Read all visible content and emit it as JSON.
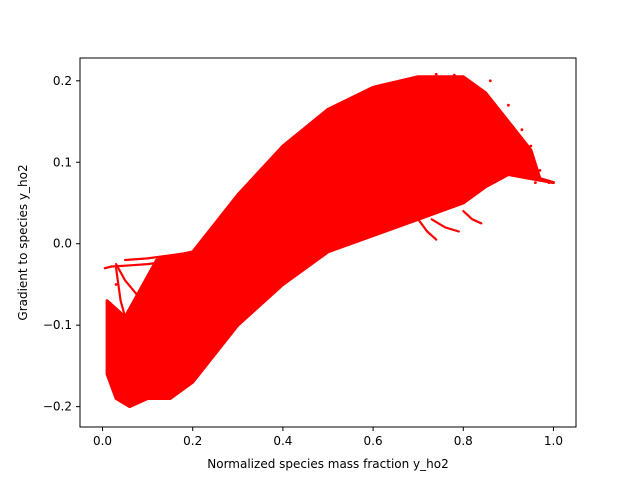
{
  "chart_data": {
    "type": "scatter",
    "title": "",
    "xlabel": "Normalized species mass fraction y_ho2",
    "ylabel": "Gradient to species y_ho2",
    "xlim": [
      -0.05,
      1.05
    ],
    "ylim": [
      -0.225,
      0.228
    ],
    "xticks": [
      0.0,
      0.2,
      0.4,
      0.6,
      0.8,
      1.0
    ],
    "xtick_labels": [
      "0.0",
      "0.2",
      "0.4",
      "0.6",
      "0.8",
      "1.0"
    ],
    "yticks": [
      -0.2,
      -0.1,
      0.0,
      0.1,
      0.2
    ],
    "ytick_labels": [
      "−0.2",
      "−0.1",
      "0.0",
      "0.1",
      "0.2"
    ],
    "grid": false,
    "legend": "none",
    "marker_color": "#ff0000",
    "series": [
      {
        "name": "",
        "upper_envelope": [
          [
            0.01,
            -0.07
          ],
          [
            0.05,
            -0.09
          ],
          [
            0.1,
            -0.04
          ],
          [
            0.12,
            -0.02
          ],
          [
            0.2,
            -0.01
          ],
          [
            0.3,
            0.06
          ],
          [
            0.4,
            0.12
          ],
          [
            0.5,
            0.165
          ],
          [
            0.6,
            0.192
          ],
          [
            0.7,
            0.205
          ],
          [
            0.8,
            0.205
          ],
          [
            0.85,
            0.185
          ],
          [
            0.9,
            0.15
          ],
          [
            0.95,
            0.115
          ],
          [
            0.97,
            0.08
          ],
          [
            1.0,
            0.075
          ]
        ],
        "lower_envelope": [
          [
            1.0,
            0.075
          ],
          [
            0.95,
            0.08
          ],
          [
            0.9,
            0.085
          ],
          [
            0.85,
            0.07
          ],
          [
            0.8,
            0.05
          ],
          [
            0.7,
            0.03
          ],
          [
            0.6,
            0.01
          ],
          [
            0.5,
            -0.01
          ],
          [
            0.4,
            -0.05
          ],
          [
            0.3,
            -0.1
          ],
          [
            0.2,
            -0.17
          ],
          [
            0.15,
            -0.19
          ],
          [
            0.1,
            -0.19
          ],
          [
            0.06,
            -0.2
          ],
          [
            0.03,
            -0.19
          ],
          [
            0.01,
            -0.16
          ]
        ],
        "streaks": [
          [
            [
              0.005,
              -0.03
            ],
            [
              0.02,
              -0.028
            ],
            [
              0.05,
              -0.027
            ],
            [
              0.1,
              -0.025
            ],
            [
              0.14,
              -0.022
            ]
          ],
          [
            [
              0.05,
              -0.02
            ],
            [
              0.1,
              -0.018
            ],
            [
              0.18,
              -0.012
            ],
            [
              0.22,
              -0.01
            ]
          ],
          [
            [
              0.03,
              -0.025
            ],
            [
              0.05,
              -0.045
            ],
            [
              0.08,
              -0.065
            ],
            [
              0.1,
              -0.075
            ],
            [
              0.12,
              -0.07
            ]
          ],
          [
            [
              0.03,
              -0.03
            ],
            [
              0.04,
              -0.07
            ],
            [
              0.05,
              -0.09
            ]
          ],
          [
            [
              0.1,
              -0.05
            ],
            [
              0.13,
              -0.06
            ],
            [
              0.16,
              -0.065
            ]
          ],
          [
            [
              0.38,
              -0.025
            ],
            [
              0.42,
              -0.022
            ],
            [
              0.47,
              -0.02
            ]
          ],
          [
            [
              0.7,
              0.03
            ],
            [
              0.72,
              0.015
            ],
            [
              0.74,
              0.005
            ]
          ],
          [
            [
              0.73,
              0.03
            ],
            [
              0.76,
              0.02
            ],
            [
              0.79,
              0.015
            ]
          ],
          [
            [
              0.8,
              0.04
            ],
            [
              0.82,
              0.03
            ],
            [
              0.84,
              0.025
            ]
          ]
        ],
        "scattered_points": [
          [
            0.03,
            -0.05
          ],
          [
            0.035,
            -0.09
          ],
          [
            0.04,
            -0.13
          ],
          [
            0.42,
            -0.03
          ],
          [
            0.46,
            -0.025
          ],
          [
            0.74,
            0.208
          ],
          [
            0.78,
            0.207
          ],
          [
            0.86,
            0.2
          ],
          [
            0.9,
            0.17
          ],
          [
            0.93,
            0.14
          ],
          [
            0.95,
            0.12
          ],
          [
            0.97,
            0.09
          ],
          [
            0.96,
            0.075
          ],
          [
            0.99,
            0.075
          ]
        ]
      }
    ]
  }
}
